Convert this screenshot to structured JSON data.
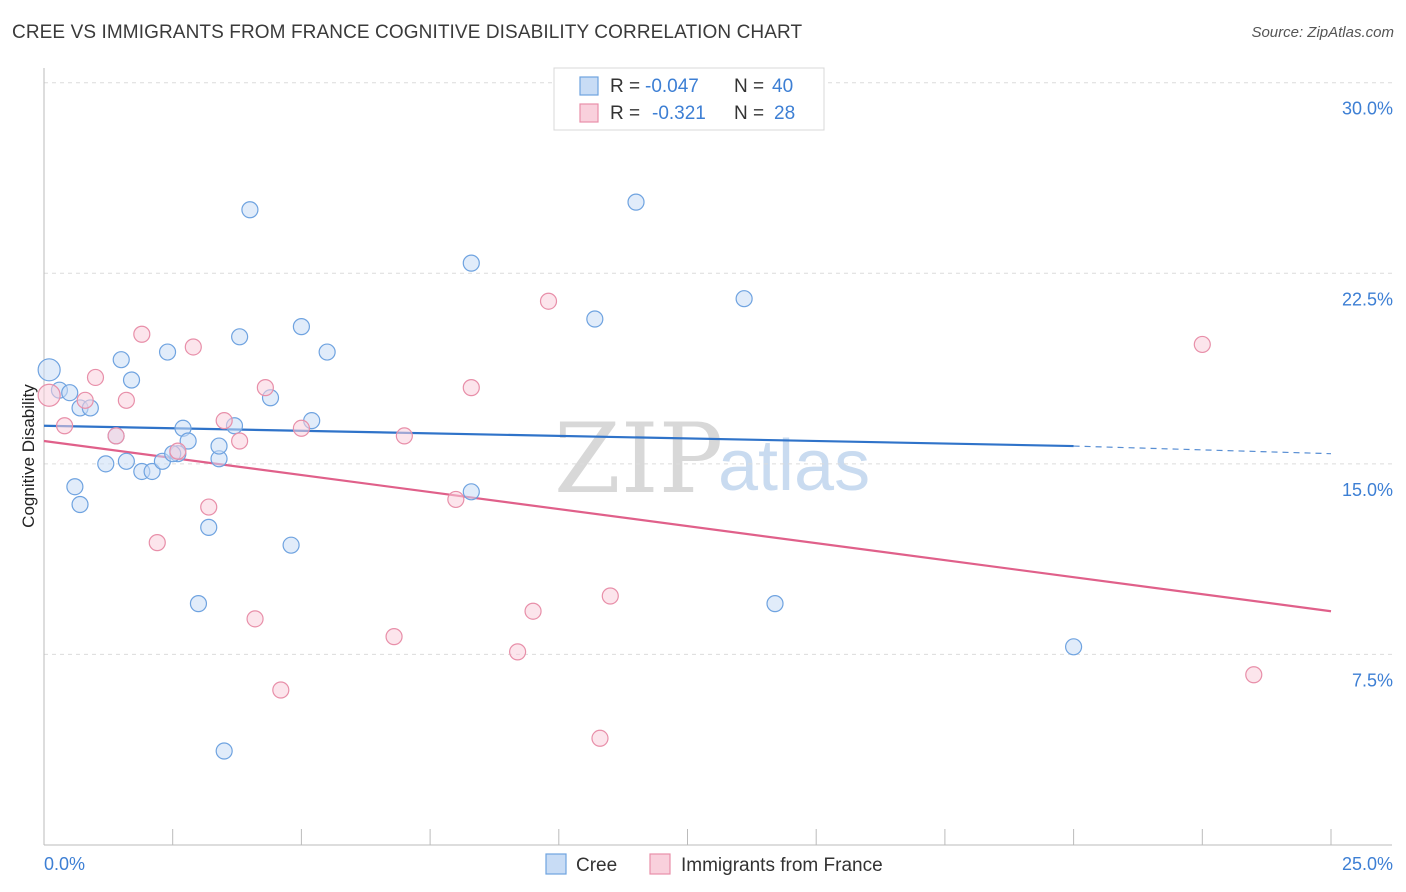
{
  "title": "CREE VS IMMIGRANTS FROM FRANCE COGNITIVE DISABILITY CORRELATION CHART",
  "source": "Source: ZipAtlas.com",
  "watermark": {
    "zip": "ZIP",
    "atlas": "atlas"
  },
  "chart_data": {
    "type": "scatter",
    "ylabel": "Cognitive Disability",
    "xlim": [
      0,
      25
    ],
    "ylim": [
      0,
      30.5
    ],
    "x_ticks": [
      {
        "value": 0,
        "label": "0.0%"
      },
      {
        "value": 25,
        "label": "25.0%"
      }
    ],
    "y_ticks": [
      {
        "value": 7.5,
        "label": "7.5%"
      },
      {
        "value": 15,
        "label": "15.0%"
      },
      {
        "value": 22.5,
        "label": "22.5%"
      },
      {
        "value": 30,
        "label": "30.0%"
      }
    ],
    "grid": true,
    "legend_top": [
      {
        "r_label": "R =",
        "r_value": "-0.047",
        "n_label": "N =",
        "n_value": "40"
      },
      {
        "r_label": "R =",
        "r_value": "-0.321",
        "n_label": "N =",
        "n_value": "28"
      }
    ],
    "series": [
      {
        "name": "Cree",
        "color": "#6fa3e0",
        "fill": "#c8dcf5",
        "trend": {
          "x0": 0,
          "y0": 16.5,
          "x1": 20,
          "y1": 15.7,
          "dash_to_x": 25,
          "dash_to_y": 15.4,
          "color": "#2f73c9"
        },
        "points": [
          [
            0.1,
            18.7
          ],
          [
            0.3,
            17.9
          ],
          [
            0.5,
            17.8
          ],
          [
            0.7,
            17.2
          ],
          [
            0.9,
            17.2
          ],
          [
            0.6,
            14.1
          ],
          [
            0.7,
            13.4
          ],
          [
            1.2,
            15.0
          ],
          [
            1.5,
            19.1
          ],
          [
            1.7,
            18.3
          ],
          [
            1.4,
            16.1
          ],
          [
            1.6,
            15.1
          ],
          [
            1.9,
            14.7
          ],
          [
            2.1,
            14.7
          ],
          [
            2.3,
            15.1
          ],
          [
            2.4,
            19.4
          ],
          [
            2.7,
            16.4
          ],
          [
            2.8,
            15.9
          ],
          [
            2.6,
            15.4
          ],
          [
            3.2,
            12.5
          ],
          [
            3.4,
            15.2
          ],
          [
            3.7,
            16.5
          ],
          [
            3.8,
            20.0
          ],
          [
            4.0,
            25.0
          ],
          [
            4.4,
            17.6
          ],
          [
            3.4,
            15.7
          ],
          [
            3.0,
            9.5
          ],
          [
            3.5,
            3.7
          ],
          [
            4.8,
            11.8
          ],
          [
            5.0,
            20.4
          ],
          [
            5.2,
            16.7
          ],
          [
            5.5,
            19.4
          ],
          [
            8.3,
            13.9
          ],
          [
            8.3,
            22.9
          ],
          [
            10.7,
            20.7
          ],
          [
            11.5,
            25.3
          ],
          [
            13.6,
            21.5
          ],
          [
            14.2,
            9.5
          ],
          [
            20.0,
            7.8
          ],
          [
            2.5,
            15.4
          ]
        ]
      },
      {
        "name": "Immigrants from France",
        "color": "#e88fa9",
        "fill": "#f9d0dc",
        "trend": {
          "x0": 0,
          "y0": 15.9,
          "x1": 25,
          "y1": 9.2,
          "color": "#e0608a"
        },
        "points": [
          [
            0.1,
            17.7
          ],
          [
            0.4,
            16.5
          ],
          [
            0.8,
            17.5
          ],
          [
            1.0,
            18.4
          ],
          [
            1.4,
            16.1
          ],
          [
            1.6,
            17.5
          ],
          [
            1.9,
            20.1
          ],
          [
            2.2,
            11.9
          ],
          [
            2.6,
            15.5
          ],
          [
            2.9,
            19.6
          ],
          [
            3.2,
            13.3
          ],
          [
            3.5,
            16.7
          ],
          [
            3.8,
            15.9
          ],
          [
            4.1,
            8.9
          ],
          [
            4.3,
            18.0
          ],
          [
            4.6,
            6.1
          ],
          [
            5.0,
            16.4
          ],
          [
            6.8,
            8.2
          ],
          [
            7.0,
            16.1
          ],
          [
            8.0,
            13.6
          ],
          [
            8.3,
            18.0
          ],
          [
            9.2,
            7.6
          ],
          [
            9.5,
            9.2
          ],
          [
            9.8,
            21.4
          ],
          [
            10.8,
            4.2
          ],
          [
            11.0,
            9.8
          ],
          [
            22.5,
            19.7
          ],
          [
            23.5,
            6.7
          ]
        ]
      }
    ]
  }
}
